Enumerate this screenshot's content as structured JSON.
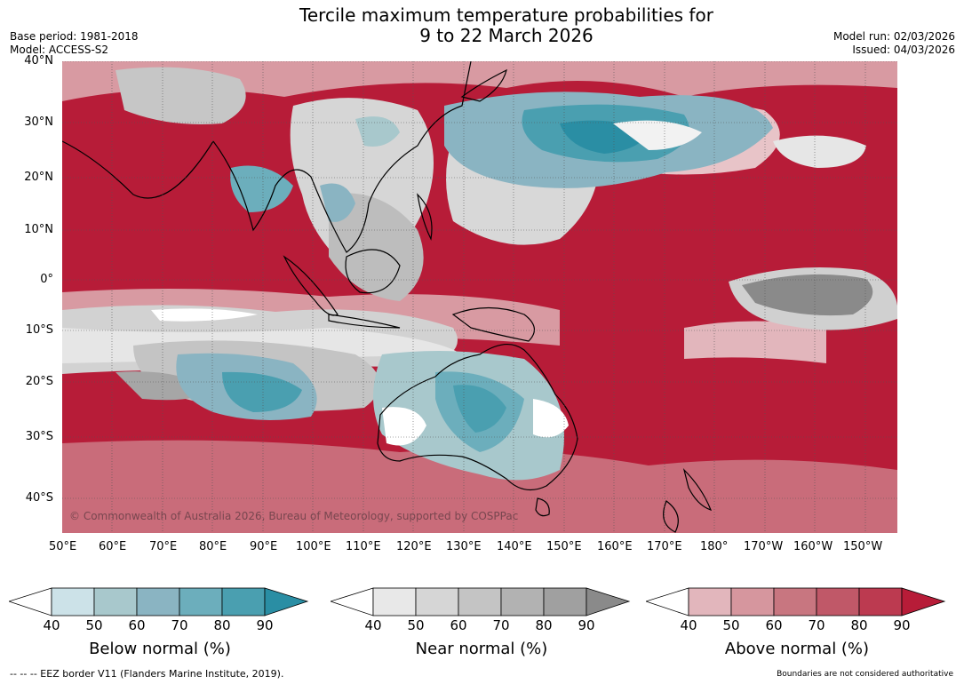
{
  "header": {
    "title_line1": "Tercile maximum temperature probabilities for",
    "title_line2": "9 to 22 March 2026",
    "base_period": "Base period: 1981-2018",
    "model": "Model: ACCESS-S2",
    "model_run": "Model run: 02/03/2026",
    "issued": "Issued: 04/03/2026"
  },
  "map": {
    "lat_labels": [
      "40°N",
      "30°N",
      "20°N",
      "10°N",
      "0°",
      "10°S",
      "20°S",
      "30°S",
      "40°S"
    ],
    "lon_labels": [
      "50°E",
      "60°E",
      "70°E",
      "80°E",
      "90°E",
      "100°E",
      "110°E",
      "120°E",
      "130°E",
      "140°E",
      "150°E",
      "160°E",
      "170°E",
      "180°",
      "170°W",
      "160°W",
      "150°W"
    ],
    "copyright": "© Commonwealth of Australia 2026, Bureau of Meteorology, supported by COSPPac",
    "colors": {
      "above_deep": "#b71c38",
      "below_deep": "#2a8ea4",
      "near": "#8a8a8a"
    }
  },
  "legends": [
    {
      "label": "Below normal (%)",
      "ticks": [
        "40",
        "50",
        "60",
        "70",
        "80",
        "90"
      ],
      "colors": [
        "#cce2e8",
        "#a8c8cc",
        "#8ab4c2",
        "#6caebc",
        "#4a9fb0",
        "#2a8ea4"
      ]
    },
    {
      "label": "Near normal (%)",
      "ticks": [
        "40",
        "50",
        "60",
        "70",
        "80",
        "90"
      ],
      "colors": [
        "#e8e8e8",
        "#d6d6d6",
        "#c4c4c4",
        "#b2b2b2",
        "#a0a0a0",
        "#8a8a8a"
      ]
    },
    {
      "label": "Above normal (%)",
      "ticks": [
        "40",
        "50",
        "60",
        "70",
        "80",
        "90"
      ],
      "colors": [
        "#e2b6bc",
        "#d6969e",
        "#c87680",
        "#c05868",
        "#bc3a50",
        "#b71c38"
      ]
    }
  ],
  "footer": {
    "eez": "--  --  -- EEZ border V11 (Flanders Marine Institute, 2019).",
    "disclaimer": "Boundaries are not considered authoritative"
  }
}
